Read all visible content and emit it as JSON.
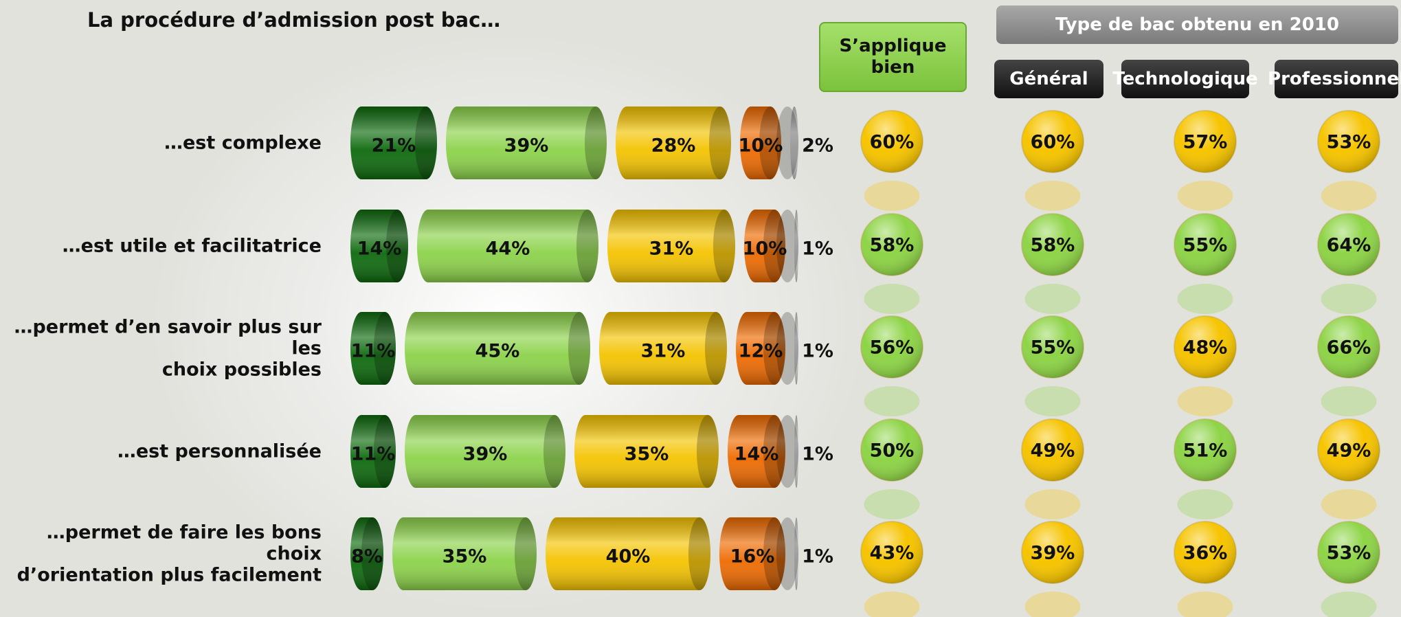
{
  "title": "La procédure d’admission post bac…",
  "chart_data": {
    "type": "bar",
    "orientation": "horizontal",
    "stacked": true,
    "categories": [
      "…est complexe",
      "…est utile et facilitatrice",
      "…permet d’en savoir plus sur les\nchoix possibles",
      "…est personnalisée",
      "…permet de faire les bons choix\nd’orientation plus facilement"
    ],
    "series": [
      {
        "color": "#0d6a0d",
        "values": [
          21,
          14,
          11,
          11,
          8
        ],
        "value_labels": [
          "21%",
          "14%",
          "11%",
          "11%",
          "8%"
        ]
      },
      {
        "color": "#8cd24a",
        "values": [
          39,
          44,
          45,
          39,
          35
        ],
        "value_labels": [
          "39%",
          "44%",
          "45%",
          "39%",
          "35%"
        ]
      },
      {
        "color": "#f4c300",
        "values": [
          28,
          31,
          31,
          35,
          40
        ],
        "value_labels": [
          "28%",
          "31%",
          "31%",
          "35%",
          "40%"
        ]
      },
      {
        "color": "#ee6a00",
        "values": [
          10,
          10,
          12,
          14,
          16
        ],
        "value_labels": [
          "10%",
          "10%",
          "12%",
          "14%",
          "16%"
        ]
      },
      {
        "color": "#c4c4c4",
        "values": [
          2,
          1,
          1,
          1,
          1
        ],
        "value_labels": [
          "2%",
          "1%",
          "1%",
          "1%",
          "1%"
        ]
      }
    ],
    "xlim": [
      0,
      100
    ]
  },
  "summary": {
    "header": "S’applique\nbien",
    "group_header": "Type de bac obtenu en 2010",
    "columns": [
      "Général",
      "Technologique",
      "Professionnel"
    ],
    "values": [
      [
        60,
        60,
        57,
        53
      ],
      [
        58,
        58,
        55,
        64
      ],
      [
        56,
        55,
        48,
        66
      ],
      [
        50,
        49,
        51,
        49
      ],
      [
        43,
        39,
        36,
        53
      ]
    ],
    "value_labels": [
      [
        "60%",
        "60%",
        "57%",
        "53%"
      ],
      [
        "58%",
        "58%",
        "55%",
        "64%"
      ],
      [
        "56%",
        "55%",
        "48%",
        "66%"
      ],
      [
        "50%",
        "49%",
        "51%",
        "49%"
      ],
      [
        "43%",
        "39%",
        "36%",
        "53%"
      ]
    ],
    "colors": [
      [
        "#f6c400",
        "#f6c400",
        "#f6c400",
        "#f6c400"
      ],
      [
        "#8ed447",
        "#8ed447",
        "#8ed447",
        "#8ed447"
      ],
      [
        "#8ed447",
        "#8ed447",
        "#f6c400",
        "#8ed447"
      ],
      [
        "#8ed447",
        "#f6c400",
        "#8ed447",
        "#f6c400"
      ],
      [
        "#f6c400",
        "#f6c400",
        "#f6c400",
        "#8ed447"
      ]
    ]
  }
}
